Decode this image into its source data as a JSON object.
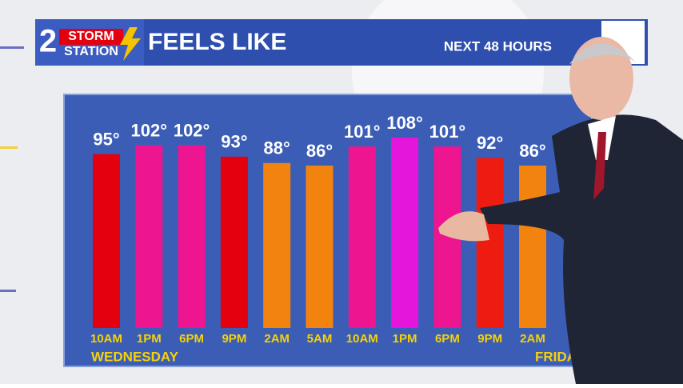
{
  "header": {
    "logo_number": "2",
    "logo_top": "STORM",
    "logo_bottom": "STATION"
  },
  "chart_data": {
    "type": "bar",
    "title": "FEELS LIKE",
    "subtitle": "NEXT 48 HOURS",
    "categories": [
      "10AM",
      "1PM",
      "6PM",
      "9PM",
      "2AM",
      "5AM",
      "10AM",
      "1PM",
      "6PM",
      "9PM",
      "2AM"
    ],
    "values": [
      95,
      102,
      102,
      93,
      88,
      86,
      101,
      108,
      101,
      92,
      86
    ],
    "value_labels": [
      "95°",
      "102°",
      "102°",
      "93°",
      "88°",
      "86°",
      "101°",
      "108°",
      "101°",
      "92°",
      "86°"
    ],
    "colors": [
      "#e3000f",
      "#ee1590",
      "#ee1590",
      "#e3000f",
      "#f2830f",
      "#f2830f",
      "#ee1590",
      "#e516dc",
      "#ee1590",
      "#ee1c10",
      "#f2830f"
    ],
    "day_labels": [
      "WEDNESDAY",
      "FRIDAY"
    ]
  }
}
